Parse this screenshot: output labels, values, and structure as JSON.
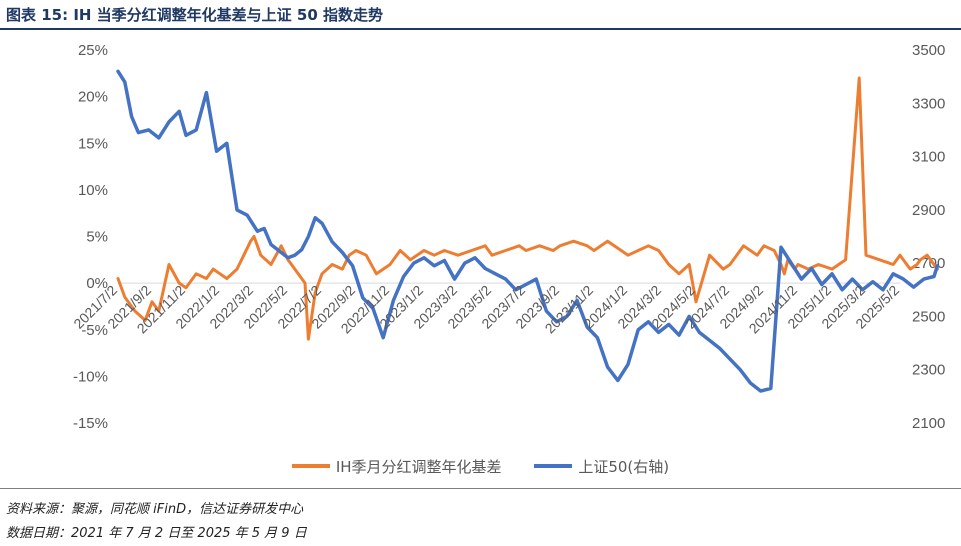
{
  "header": {
    "title": "图表 15:  IH 当季分红调整年化基差与上证 50 指数走势"
  },
  "footer": {
    "source": "资料来源：聚源，同花顺 iFinD，信达证券研发中心",
    "period": "数据日期：2021 年 7 月 2 日至 2025 年 5 月 9 日"
  },
  "colors": {
    "basis": "#ed7d31",
    "index": "#4472c4",
    "axis_text": "#595959",
    "title": "#1f3864"
  },
  "chart_data": {
    "type": "line",
    "y_left": {
      "ticks": [
        "25%",
        "20%",
        "15%",
        "10%",
        "5%",
        "0%",
        "-5%",
        "-10%",
        "-15%"
      ],
      "range": [
        -15,
        25
      ]
    },
    "y_right": {
      "ticks": [
        "3500",
        "3300",
        "3100",
        "2900",
        "2700",
        "2500",
        "2300",
        "2100"
      ],
      "range": [
        2100,
        3500
      ]
    },
    "x_ticks": [
      "2021/7/2",
      "2021/9/2",
      "2021/11/2",
      "2022/1/2",
      "2022/3/2",
      "2022/5/2",
      "2022/7/2",
      "2022/9/2",
      "2022/11/2",
      "2023/1/2",
      "2023/3/2",
      "2023/5/2",
      "2023/7/2",
      "2023/9/2",
      "2023/11/2",
      "2024/1/2",
      "2024/3/2",
      "2024/5/2",
      "2024/7/2",
      "2024/9/2",
      "2024/11/2",
      "2025/1/2",
      "2025/3/2",
      "2025/5/2"
    ],
    "legend": [
      "IH季月分红调整年化基差",
      "上证50(右轴)"
    ],
    "series": [
      {
        "name": "IH季月分红调整年化基差",
        "axis": "left",
        "color": "#ed7d31",
        "x": [
          0,
          0.2,
          0.5,
          0.8,
          1.0,
          1.2,
          1.5,
          1.8,
          2.0,
          2.3,
          2.6,
          2.8,
          3.0,
          3.2,
          3.5,
          3.7,
          3.9,
          4.0,
          4.2,
          4.5,
          4.8,
          5.0,
          5.3,
          5.5,
          5.6,
          5.8,
          6.0,
          6.3,
          6.6,
          6.8,
          7.0,
          7.3,
          7.6,
          8.0,
          8.3,
          8.6,
          9.0,
          9.3,
          9.6,
          10.0,
          10.4,
          10.8,
          11.0,
          11.4,
          11.8,
          12.0,
          12.4,
          12.8,
          13.0,
          13.4,
          13.8,
          14.0,
          14.4,
          14.8,
          15.0,
          15.3,
          15.6,
          15.9,
          16.2,
          16.5,
          16.8,
          17.0,
          17.4,
          17.8,
          18.0,
          18.4,
          18.8,
          19.0,
          19.3,
          19.5,
          19.6,
          19.7,
          19.9,
          20.0,
          20.3,
          20.6,
          21.0,
          21.4,
          21.8,
          22.0,
          22.4,
          22.8,
          23.0,
          23.3,
          23.5,
          23.6,
          23.8,
          24.0,
          24.1
        ],
        "values": [
          0.5,
          -1.5,
          -3.0,
          -4.0,
          -2.0,
          -3.0,
          2.0,
          0.0,
          -0.5,
          1.0,
          0.5,
          1.5,
          1.0,
          0.5,
          1.5,
          3.0,
          4.5,
          5.0,
          3.0,
          2.0,
          4.0,
          2.5,
          1.0,
          0.0,
          -6.0,
          -1.0,
          1.0,
          2.0,
          1.5,
          3.0,
          3.5,
          3.0,
          1.0,
          2.0,
          3.5,
          2.5,
          3.5,
          3.0,
          3.5,
          3.0,
          3.5,
          4.0,
          3.0,
          3.5,
          4.0,
          3.5,
          4.0,
          3.5,
          4.0,
          4.5,
          4.0,
          3.5,
          4.5,
          3.5,
          3.0,
          3.5,
          4.0,
          3.5,
          2.0,
          1.0,
          2.0,
          -2.0,
          3.0,
          1.5,
          2.0,
          4.0,
          3.0,
          4.0,
          3.5,
          2.0,
          1.0,
          2.5,
          1.5,
          2.0,
          1.5,
          2.0,
          1.5,
          2.5,
          22.0,
          3.0,
          2.5,
          2.0,
          3.0,
          1.5,
          2.0,
          2.5,
          3.0,
          2.0,
          1.5
        ]
      },
      {
        "name": "上证50(右轴)",
        "axis": "right",
        "color": "#4472c4",
        "x": [
          0,
          0.2,
          0.4,
          0.6,
          0.9,
          1.2,
          1.5,
          1.8,
          2.0,
          2.3,
          2.6,
          2.9,
          3.2,
          3.5,
          3.8,
          4.1,
          4.3,
          4.5,
          4.8,
          5.0,
          5.2,
          5.4,
          5.6,
          5.8,
          6.0,
          6.3,
          6.6,
          6.9,
          7.2,
          7.5,
          7.8,
          8.1,
          8.4,
          8.7,
          9.0,
          9.3,
          9.6,
          9.9,
          10.2,
          10.5,
          10.8,
          11.1,
          11.4,
          11.7,
          12.0,
          12.3,
          12.6,
          12.9,
          13.2,
          13.5,
          13.8,
          14.1,
          14.4,
          14.7,
          15.0,
          15.3,
          15.6,
          15.9,
          16.2,
          16.5,
          16.8,
          17.1,
          17.4,
          17.7,
          18.0,
          18.3,
          18.6,
          18.9,
          19.2,
          19.5,
          19.8,
          20.1,
          20.4,
          20.7,
          21.0,
          21.3,
          21.6,
          21.9,
          22.2,
          22.5,
          22.8,
          23.1,
          23.4,
          23.7,
          24.0,
          24.1
        ],
        "values": [
          3420,
          3380,
          3250,
          3190,
          3200,
          3170,
          3230,
          3270,
          3180,
          3200,
          3340,
          3120,
          3150,
          2900,
          2880,
          2820,
          2830,
          2770,
          2740,
          2720,
          2730,
          2750,
          2800,
          2870,
          2850,
          2780,
          2740,
          2690,
          2570,
          2530,
          2420,
          2560,
          2650,
          2700,
          2720,
          2690,
          2710,
          2640,
          2700,
          2720,
          2680,
          2660,
          2640,
          2600,
          2620,
          2640,
          2520,
          2480,
          2500,
          2560,
          2460,
          2420,
          2310,
          2260,
          2320,
          2450,
          2480,
          2440,
          2470,
          2430,
          2500,
          2440,
          2410,
          2380,
          2340,
          2300,
          2250,
          2220,
          2230,
          2760,
          2700,
          2640,
          2680,
          2620,
          2660,
          2600,
          2640,
          2600,
          2630,
          2600,
          2660,
          2640,
          2610,
          2640,
          2650,
          2690
        ]
      }
    ]
  }
}
